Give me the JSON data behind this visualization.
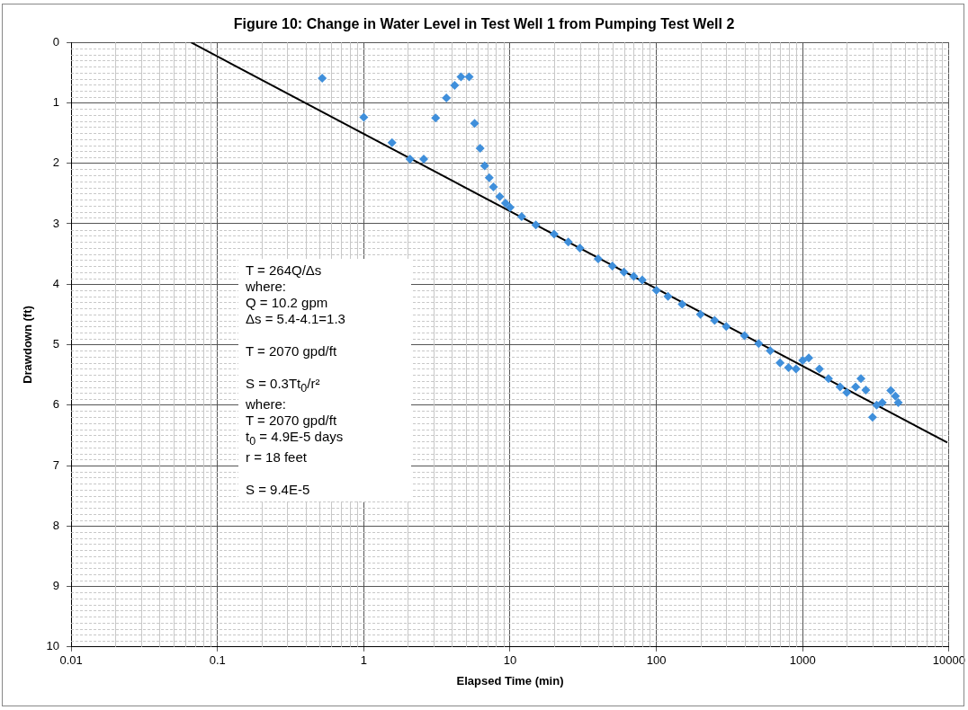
{
  "chart_data": {
    "type": "scatter",
    "title": "Figure 10: Change in Water Level in Test Well 1 from Pumping Test Well 2",
    "xlabel": "Elapsed Time (min)",
    "ylabel": "Drawdown (ft)",
    "log": "x",
    "grid": true,
    "legend": false,
    "xlim": [
      0.01,
      10000
    ],
    "xticks": [
      0.01,
      0.1,
      1,
      10,
      100,
      1000,
      10000
    ],
    "ylim": [
      10,
      0
    ],
    "yticks": [
      0,
      1,
      2,
      3,
      4,
      5,
      6,
      7,
      8,
      9,
      10
    ],
    "series": [
      {
        "color": "#3f8fdb",
        "marker": "diamond",
        "x": [
          0.52,
          1.0,
          1.56,
          2.07,
          2.57,
          3.1,
          3.67,
          4.18,
          4.62,
          5.25,
          5.72,
          6.24,
          6.7,
          7.2,
          7.7,
          8.5,
          9.3,
          10,
          12,
          15,
          20,
          25,
          30,
          40,
          50,
          60,
          70,
          80,
          100,
          120,
          150,
          200,
          250,
          300,
          400,
          500,
          600,
          700,
          800,
          900,
          1000,
          1100,
          1300,
          1500,
          1800,
          2000,
          2300,
          2500,
          2700,
          3000,
          3200,
          3500,
          4000,
          4300,
          4500
        ],
        "values": [
          0.59,
          1.24,
          1.66,
          1.93,
          1.93,
          1.25,
          0.92,
          0.71,
          0.57,
          0.57,
          1.34,
          1.75,
          2.04,
          2.24,
          2.39,
          2.55,
          2.66,
          2.73,
          2.88,
          3.02,
          3.17,
          3.3,
          3.4,
          3.58,
          3.7,
          3.8,
          3.87,
          3.93,
          4.1,
          4.2,
          4.33,
          4.5,
          4.6,
          4.7,
          4.85,
          4.98,
          5.1,
          5.3,
          5.38,
          5.4,
          5.26,
          5.22,
          5.4,
          5.56,
          5.7,
          5.79,
          5.7,
          5.56,
          5.75,
          6.2,
          6.0,
          5.96,
          5.76,
          5.85,
          5.96
        ]
      },
      {
        "type": "line",
        "marker": "none",
        "color": "#000000",
        "x": [
          0.066,
          9730
        ],
        "values": [
          0,
          6.62
        ]
      }
    ],
    "annotations": [
      "T = 264Q/Δs\nwhere:\nQ = 10.2 gpm\nΔs = 5.4-4.1=1.3",
      "T = 2070 gpd/ft",
      "S = 0.3Tt$_{0}$/r²\nwhere:\nT = 2070 gpd/ft\nt$_{0}$ = 4.9E-5 days\nr = 18 feet",
      "S = 9.4E-5"
    ]
  }
}
